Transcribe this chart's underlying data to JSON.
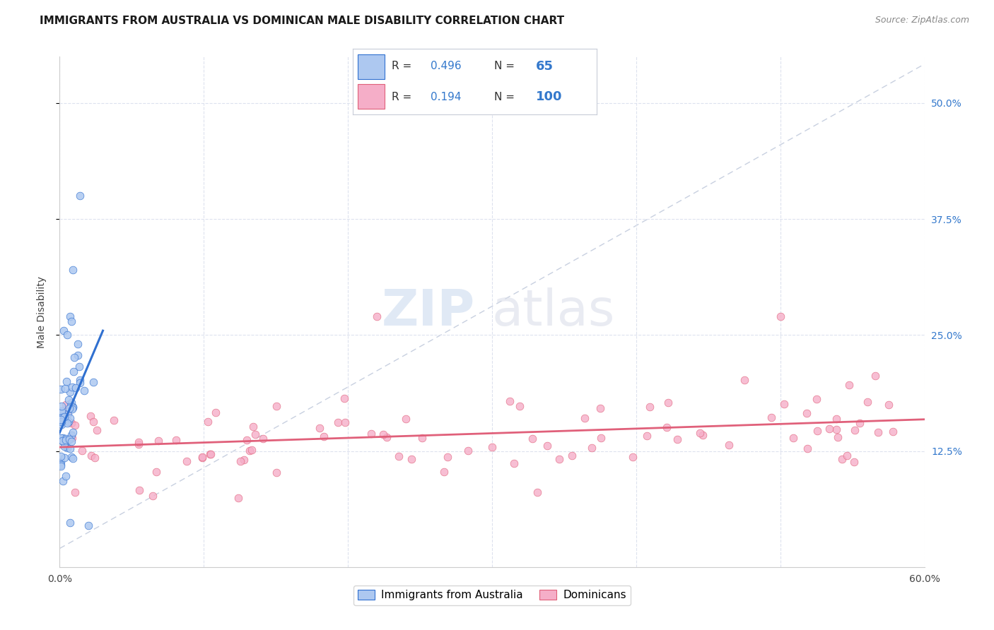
{
  "title": "IMMIGRANTS FROM AUSTRALIA VS DOMINICAN MALE DISABILITY CORRELATION CHART",
  "source": "Source: ZipAtlas.com",
  "ylabel": "Male Disability",
  "xlim": [
    0.0,
    0.6
  ],
  "ylim": [
    0.0,
    0.55
  ],
  "xticks": [
    0.0,
    0.1,
    0.2,
    0.3,
    0.4,
    0.5,
    0.6
  ],
  "xticklabels": [
    "0.0%",
    "",
    "",
    "",
    "",
    "",
    "60.0%"
  ],
  "ytick_labels_right": [
    "50.0%",
    "37.5%",
    "25.0%",
    "12.5%"
  ],
  "ytick_positions_right": [
    0.5,
    0.375,
    0.25,
    0.125
  ],
  "R_australia": 0.496,
  "N_australia": 65,
  "R_dominican": 0.194,
  "N_dominican": 100,
  "color_australia": "#adc8f0",
  "color_dominican": "#f5aec8",
  "line_color_australia": "#3070d0",
  "line_color_dominican": "#e0607a",
  "line_color_diagonal": "#c8d0e0",
  "legend_label_australia": "Immigrants from Australia",
  "legend_label_dominican": "Dominicans",
  "watermark_zip": "ZIP",
  "watermark_atlas": "atlas",
  "background_color": "#ffffff",
  "grid_color": "#dde2ee",
  "title_fontsize": 11,
  "source_fontsize": 9,
  "stats_R_color": "#3378cc",
  "stats_N_color": "#000000",
  "stats_N_bold_color": "#3378cc"
}
